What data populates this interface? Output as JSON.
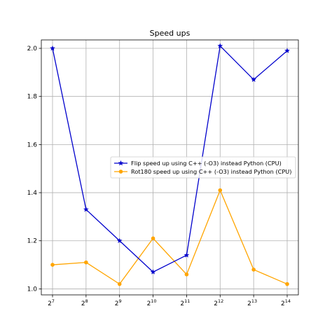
{
  "chart_data": {
    "type": "line",
    "title": "Speed ups",
    "xlabel": "",
    "ylabel": "",
    "x_base": "2",
    "x_exponents": [
      "7",
      "8",
      "9",
      "10",
      "11",
      "12",
      "13",
      "14"
    ],
    "x": [
      128,
      256,
      512,
      1024,
      2048,
      4096,
      8192,
      16384
    ],
    "x_scale": "log2",
    "ylim": [
      0.975,
      2.035
    ],
    "yticks": [
      1.0,
      1.2,
      1.4,
      1.6,
      1.8,
      2.0
    ],
    "ytick_labels": [
      "1.0",
      "1.2",
      "1.4",
      "1.6",
      "1.8",
      "2.0"
    ],
    "grid": true,
    "legend_position": "center-right",
    "series": [
      {
        "name": "Flip speed up using C++ (-O3) instead Python (CPU)",
        "color": "#0000cc",
        "marker": "star",
        "values": [
          2.0,
          1.33,
          1.2,
          1.07,
          1.14,
          2.01,
          1.87,
          1.99
        ]
      },
      {
        "name": "Rot180 speed up using C++ (-O3)  instead Python (CPU)",
        "color": "#ffa500",
        "marker": "circle",
        "values": [
          1.1,
          1.11,
          1.02,
          1.21,
          1.06,
          1.41,
          1.08,
          1.02
        ]
      }
    ]
  }
}
